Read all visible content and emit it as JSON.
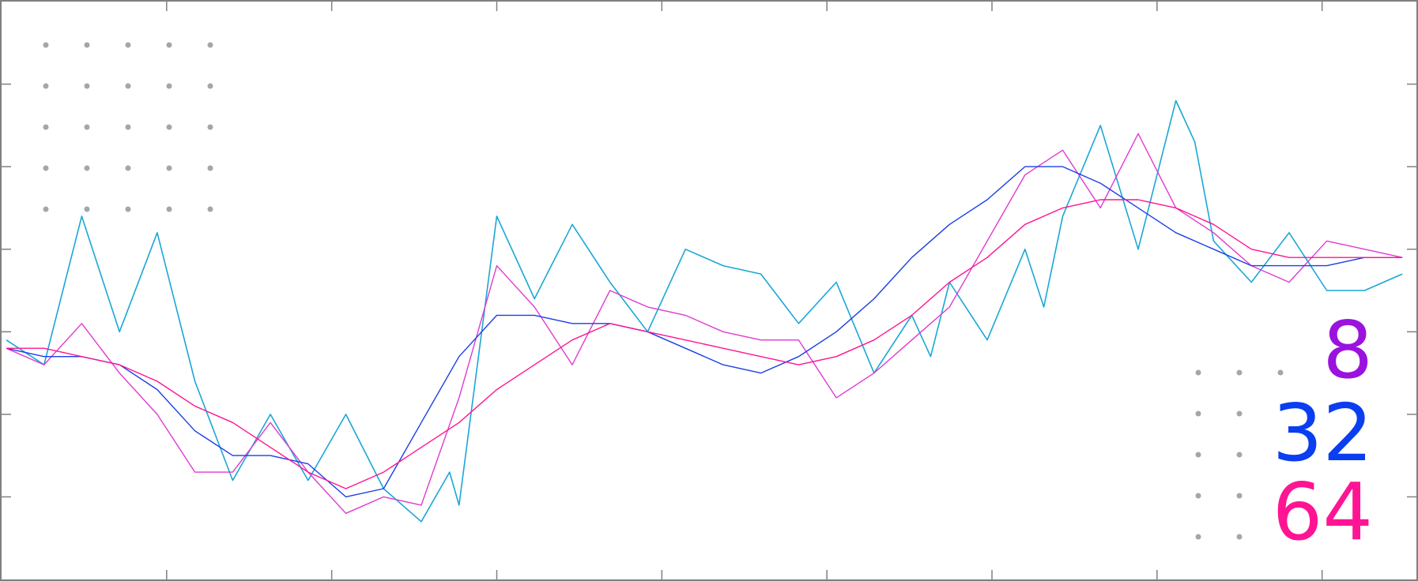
{
  "chart_data": {
    "type": "line",
    "title": "",
    "xlabel": "",
    "ylabel": "",
    "xlim": [
      0,
      300
    ],
    "ylim": [
      0,
      7
    ],
    "grid": false,
    "legend_placement": "bottom-right",
    "x_ticks": [
      35,
      70,
      105,
      140,
      175,
      210,
      245,
      280
    ],
    "y_ticks": [
      1,
      2,
      3,
      4,
      5,
      6
    ],
    "series": [
      {
        "name": "",
        "color": "#1aa7d6",
        "x": [
          1,
          9,
          17,
          25,
          33,
          41,
          49,
          57,
          65,
          73,
          81,
          89,
          95,
          97,
          105,
          113,
          121,
          129,
          137,
          145,
          153,
          161,
          169,
          177,
          185,
          193,
          197,
          201,
          209,
          217,
          221,
          225,
          233,
          241,
          249,
          253,
          257,
          265,
          273,
          281,
          289,
          297
        ],
        "y": [
          2.9,
          2.6,
          4.4,
          3.0,
          4.2,
          2.4,
          1.2,
          2.0,
          1.2,
          2.0,
          1.1,
          0.7,
          1.3,
          0.9,
          4.4,
          3.4,
          4.3,
          3.6,
          3.0,
          4.0,
          3.8,
          3.7,
          3.1,
          3.6,
          2.5,
          3.2,
          2.7,
          3.6,
          2.9,
          4.0,
          3.3,
          4.4,
          5.5,
          4.0,
          5.8,
          5.3,
          4.1,
          3.6,
          4.2,
          3.5,
          3.5,
          3.7
        ]
      },
      {
        "name": "8",
        "color": "#e03ad1",
        "x": [
          1,
          9,
          17,
          25,
          33,
          41,
          49,
          57,
          65,
          73,
          81,
          89,
          97,
          105,
          113,
          121,
          129,
          137,
          145,
          153,
          161,
          169,
          177,
          185,
          193,
          201,
          209,
          217,
          225,
          233,
          241,
          249,
          257,
          265,
          273,
          281,
          289,
          297
        ],
        "y": [
          2.8,
          2.6,
          3.1,
          2.5,
          2.0,
          1.3,
          1.3,
          1.9,
          1.3,
          0.8,
          1.0,
          0.9,
          2.2,
          3.8,
          3.3,
          2.6,
          3.5,
          3.3,
          3.2,
          3.0,
          2.9,
          2.9,
          2.2,
          2.5,
          2.9,
          3.3,
          4.1,
          4.9,
          5.2,
          4.5,
          5.4,
          4.5,
          4.2,
          3.8,
          3.6,
          4.1,
          4.0,
          3.9
        ]
      },
      {
        "name": "32",
        "color": "#1a3fe6",
        "x": [
          1,
          9,
          17,
          25,
          33,
          41,
          49,
          57,
          65,
          73,
          81,
          89,
          97,
          105,
          113,
          121,
          129,
          137,
          145,
          153,
          161,
          169,
          177,
          185,
          193,
          201,
          209,
          217,
          225,
          233,
          241,
          249,
          257,
          265,
          273,
          281,
          289,
          297
        ],
        "y": [
          2.8,
          2.7,
          2.7,
          2.6,
          2.3,
          1.8,
          1.5,
          1.5,
          1.4,
          1.0,
          1.1,
          1.9,
          2.7,
          3.2,
          3.2,
          3.1,
          3.1,
          3.0,
          2.8,
          2.6,
          2.5,
          2.7,
          3.0,
          3.4,
          3.9,
          4.3,
          4.6,
          5.0,
          5.0,
          4.8,
          4.5,
          4.2,
          4.0,
          3.8,
          3.8,
          3.8,
          3.9,
          3.9
        ]
      },
      {
        "name": "64",
        "color": "#ff1493",
        "x": [
          1,
          9,
          17,
          25,
          33,
          41,
          49,
          57,
          65,
          73,
          81,
          89,
          97,
          105,
          113,
          121,
          129,
          137,
          145,
          153,
          161,
          169,
          177,
          185,
          193,
          201,
          209,
          217,
          225,
          233,
          241,
          249,
          257,
          265,
          273,
          281,
          289,
          297
        ],
        "y": [
          2.8,
          2.8,
          2.7,
          2.6,
          2.4,
          2.1,
          1.9,
          1.6,
          1.3,
          1.1,
          1.3,
          1.6,
          1.9,
          2.3,
          2.6,
          2.9,
          3.1,
          3.0,
          2.9,
          2.8,
          2.7,
          2.6,
          2.7,
          2.9,
          3.2,
          3.6,
          3.9,
          4.3,
          4.5,
          4.6,
          4.6,
          4.5,
          4.3,
          4.0,
          3.9,
          3.9,
          3.9,
          3.9
        ]
      }
    ]
  },
  "legend": {
    "items": [
      {
        "label": "8",
        "color": "#9b12df"
      },
      {
        "label": "32",
        "color": "#0a3ef0"
      },
      {
        "label": "64",
        "color": "#ff1493"
      }
    ]
  }
}
